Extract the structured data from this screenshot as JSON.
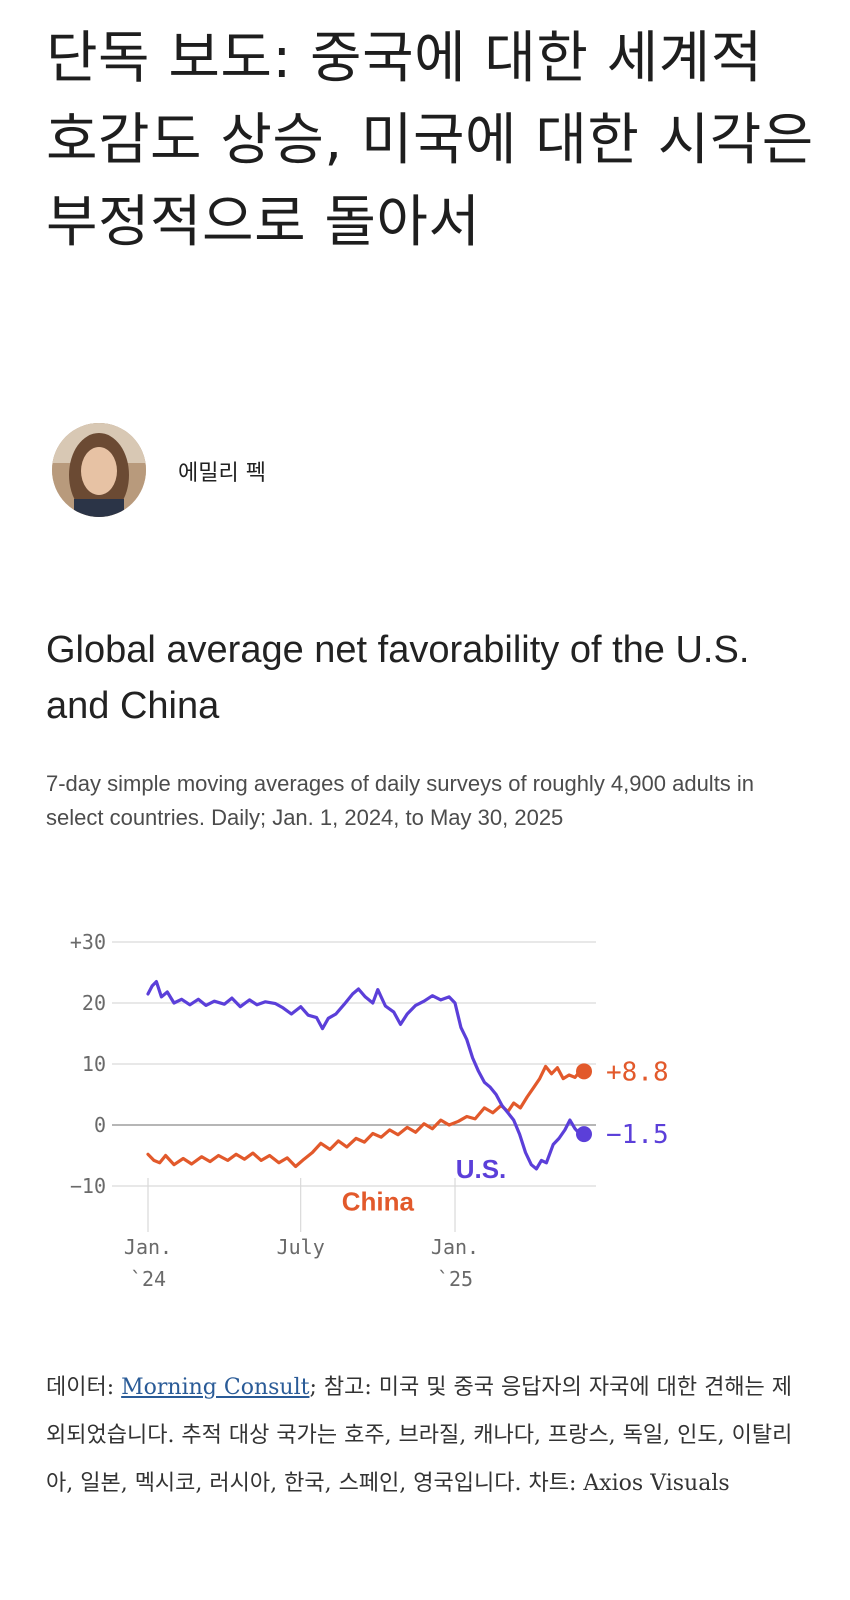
{
  "headline": "단독 보도: 중국에 대한 세계적 호감도 상승, 미국에 대한 시각은 부정적으로 돌아서",
  "author": {
    "name": "에밀리 펙"
  },
  "chart_data": {
    "type": "line",
    "title": "Global average net favorability of the U.S. and China",
    "subtitle": "7-day simple moving averages of daily surveys of roughly 4,900 adults in select countries. Daily; Jan. 1, 2024, to May 30, 2025",
    "ylim": [
      -10,
      30
    ],
    "y_ticks": [
      "+30",
      "20",
      "10",
      "0",
      "−10"
    ],
    "y_tick_values": [
      30,
      20,
      10,
      0,
      -10
    ],
    "x_ticks": [
      {
        "line1": "Jan.",
        "line2": "`24",
        "date": "2024-01-01"
      },
      {
        "line1": "July",
        "line2": "",
        "date": "2024-07-01"
      },
      {
        "line1": "Jan.",
        "line2": "`25",
        "date": "2025-01-01"
      }
    ],
    "xlim": [
      "2024-01-01",
      "2025-05-30"
    ],
    "grid": true,
    "series": [
      {
        "name": "U.S.",
        "color": "#5b3fd9",
        "end_label": "−1.5",
        "points": [
          [
            "2024-01-01",
            21.5
          ],
          [
            "2024-01-06",
            22.8
          ],
          [
            "2024-01-11",
            23.5
          ],
          [
            "2024-01-17",
            21.0
          ],
          [
            "2024-01-24",
            21.8
          ],
          [
            "2024-02-01",
            20.0
          ],
          [
            "2024-02-10",
            20.6
          ],
          [
            "2024-02-20",
            19.7
          ],
          [
            "2024-03-01",
            20.6
          ],
          [
            "2024-03-10",
            19.6
          ],
          [
            "2024-03-20",
            20.3
          ],
          [
            "2024-04-01",
            19.8
          ],
          [
            "2024-04-10",
            20.8
          ],
          [
            "2024-04-20",
            19.4
          ],
          [
            "2024-05-01",
            20.5
          ],
          [
            "2024-05-10",
            19.7
          ],
          [
            "2024-05-20",
            20.2
          ],
          [
            "2024-06-01",
            19.9
          ],
          [
            "2024-06-10",
            19.2
          ],
          [
            "2024-06-20",
            18.2
          ],
          [
            "2024-07-01",
            19.4
          ],
          [
            "2024-07-10",
            18.0
          ],
          [
            "2024-07-20",
            17.6
          ],
          [
            "2024-07-27",
            15.8
          ],
          [
            "2024-08-03",
            17.5
          ],
          [
            "2024-08-12",
            18.2
          ],
          [
            "2024-08-22",
            19.8
          ],
          [
            "2024-09-01",
            21.5
          ],
          [
            "2024-09-08",
            22.3
          ],
          [
            "2024-09-16",
            21.0
          ],
          [
            "2024-09-25",
            20.0
          ],
          [
            "2024-10-01",
            22.2
          ],
          [
            "2024-10-10",
            19.5
          ],
          [
            "2024-10-20",
            18.5
          ],
          [
            "2024-10-28",
            16.5
          ],
          [
            "2024-11-05",
            18.2
          ],
          [
            "2024-11-15",
            19.6
          ],
          [
            "2024-11-25",
            20.3
          ],
          [
            "2024-12-05",
            21.2
          ],
          [
            "2024-12-15",
            20.5
          ],
          [
            "2024-12-25",
            21.0
          ],
          [
            "2025-01-01",
            20.0
          ],
          [
            "2025-01-08",
            16.0
          ],
          [
            "2025-01-15",
            14.0
          ],
          [
            "2025-01-22",
            11.0
          ],
          [
            "2025-01-29",
            8.8
          ],
          [
            "2025-02-05",
            7.0
          ],
          [
            "2025-02-12",
            6.2
          ],
          [
            "2025-02-19",
            5.0
          ],
          [
            "2025-02-26",
            3.2
          ],
          [
            "2025-03-05",
            2.0
          ],
          [
            "2025-03-12",
            0.8
          ],
          [
            "2025-03-19",
            -1.5
          ],
          [
            "2025-03-26",
            -4.5
          ],
          [
            "2025-04-02",
            -6.5
          ],
          [
            "2025-04-08",
            -7.2
          ],
          [
            "2025-04-14",
            -5.8
          ],
          [
            "2025-04-20",
            -6.2
          ],
          [
            "2025-04-28",
            -3.2
          ],
          [
            "2025-05-05",
            -2.2
          ],
          [
            "2025-05-12",
            -0.8
          ],
          [
            "2025-05-18",
            0.8
          ],
          [
            "2025-05-24",
            -0.6
          ],
          [
            "2025-05-30",
            -1.5
          ]
        ]
      },
      {
        "name": "China",
        "color": "#e2592b",
        "end_label": "+8.8",
        "points": [
          [
            "2024-01-01",
            -4.8
          ],
          [
            "2024-01-08",
            -5.8
          ],
          [
            "2024-01-15",
            -6.2
          ],
          [
            "2024-01-22",
            -5.0
          ],
          [
            "2024-02-01",
            -6.5
          ],
          [
            "2024-02-12",
            -5.5
          ],
          [
            "2024-02-22",
            -6.4
          ],
          [
            "2024-03-05",
            -5.2
          ],
          [
            "2024-03-15",
            -6.0
          ],
          [
            "2024-03-25",
            -5.0
          ],
          [
            "2024-04-05",
            -5.8
          ],
          [
            "2024-04-15",
            -4.8
          ],
          [
            "2024-04-25",
            -5.6
          ],
          [
            "2024-05-05",
            -4.6
          ],
          [
            "2024-05-15",
            -5.8
          ],
          [
            "2024-05-25",
            -5.0
          ],
          [
            "2024-06-05",
            -6.2
          ],
          [
            "2024-06-15",
            -5.4
          ],
          [
            "2024-06-25",
            -6.8
          ],
          [
            "2024-07-05",
            -5.6
          ],
          [
            "2024-07-15",
            -4.5
          ],
          [
            "2024-07-25",
            -3.0
          ],
          [
            "2024-08-05",
            -4.0
          ],
          [
            "2024-08-15",
            -2.6
          ],
          [
            "2024-08-25",
            -3.6
          ],
          [
            "2024-09-05",
            -2.2
          ],
          [
            "2024-09-15",
            -2.8
          ],
          [
            "2024-09-25",
            -1.4
          ],
          [
            "2024-10-05",
            -2.0
          ],
          [
            "2024-10-15",
            -0.8
          ],
          [
            "2024-10-25",
            -1.6
          ],
          [
            "2024-11-05",
            -0.4
          ],
          [
            "2024-11-15",
            -1.2
          ],
          [
            "2024-11-25",
            0.2
          ],
          [
            "2024-12-05",
            -0.6
          ],
          [
            "2024-12-15",
            0.8
          ],
          [
            "2024-12-25",
            0.0
          ],
          [
            "2025-01-05",
            0.6
          ],
          [
            "2025-01-15",
            1.4
          ],
          [
            "2025-01-25",
            1.0
          ],
          [
            "2025-02-05",
            2.8
          ],
          [
            "2025-02-15",
            2.0
          ],
          [
            "2025-02-25",
            3.2
          ],
          [
            "2025-03-05",
            2.2
          ],
          [
            "2025-03-12",
            3.6
          ],
          [
            "2025-03-20",
            2.8
          ],
          [
            "2025-03-28",
            4.6
          ],
          [
            "2025-04-05",
            6.2
          ],
          [
            "2025-04-12",
            7.6
          ],
          [
            "2025-04-19",
            9.6
          ],
          [
            "2025-04-26",
            8.4
          ],
          [
            "2025-05-03",
            9.4
          ],
          [
            "2025-05-10",
            7.6
          ],
          [
            "2025-05-17",
            8.2
          ],
          [
            "2025-05-24",
            7.8
          ],
          [
            "2025-05-30",
            8.8
          ]
        ]
      }
    ],
    "annotations": [
      {
        "text": "China",
        "color": "#e2592b"
      },
      {
        "text": "U.S.",
        "color": "#5b3fd9"
      }
    ]
  },
  "footnote": {
    "prefix": "데이터: ",
    "link_text": "Morning Consult",
    "rest": "; 참고: 미국 및 중국 응답자의 자국에 대한 견해는 제외되었습니다. 추적 대상 국가는 호주, 브라질, 캐나다, 프랑스, 독일, 인도, 이탈리아, 일본, 멕시코, 러시아, 한국, 스페인, 영국입니다. 차트: Axios Visuals"
  }
}
